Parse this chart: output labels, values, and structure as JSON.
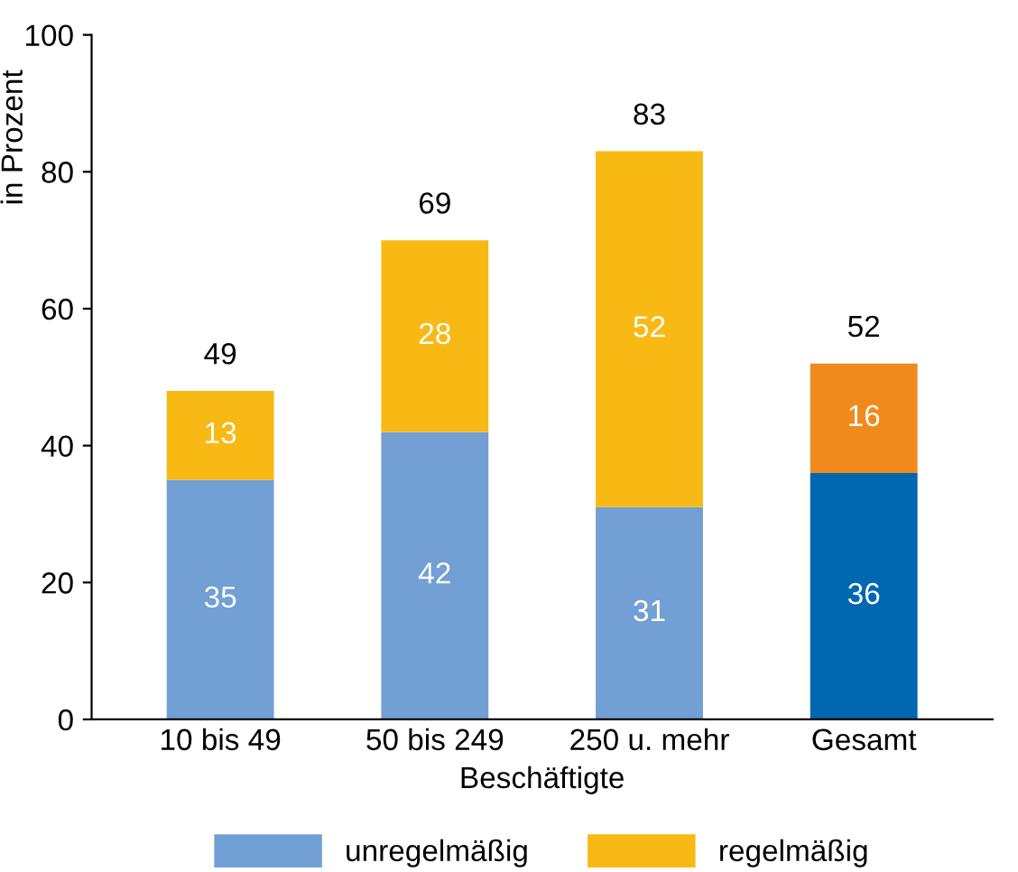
{
  "chart_data": {
    "type": "bar",
    "stacked": true,
    "categories": [
      "10 bis 49",
      "50 bis 249",
      "250 u. mehr",
      "Gesamt"
    ],
    "series": [
      {
        "name": "unregelmäßig",
        "color": "#729fd4",
        "colors": [
          "#729fd4",
          "#729fd4",
          "#729fd4",
          "#0067b1"
        ],
        "values": [
          35,
          42,
          31,
          36
        ]
      },
      {
        "name": "regelmäßig",
        "color": "#f9b914",
        "colors": [
          "#f9b914",
          "#f9b914",
          "#f9b914",
          "#f08a1c"
        ],
        "values": [
          13,
          28,
          52,
          16
        ]
      }
    ],
    "totals": [
      "49",
      "69",
      "83",
      "52"
    ],
    "data_labels": true,
    "ylim": [
      0,
      100
    ],
    "yticks": [
      0,
      20,
      40,
      60,
      80,
      100
    ],
    "ylabel": "in Prozent",
    "xlabel": "Beschäftigte",
    "grid": false,
    "legend": "bottom"
  }
}
